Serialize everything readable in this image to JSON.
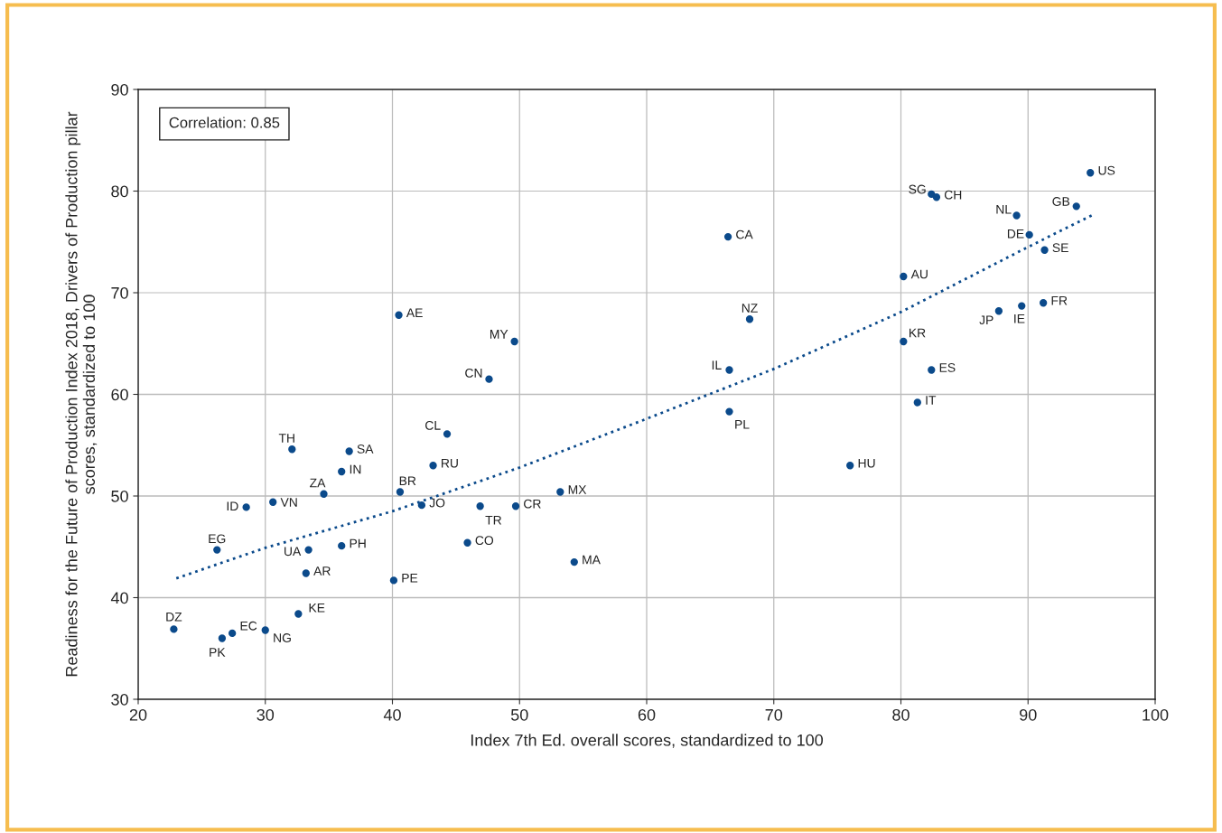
{
  "chart_data": {
    "type": "scatter",
    "xlabel": "Index 7th Ed. overall scores, standardized to 100",
    "ylabel": "Readiness for the Future of Production Index 2018, Drivers of Production pillar scores, standardized to 100",
    "annotations": [
      "Correlation: 0.85"
    ],
    "xlim": [
      20,
      100
    ],
    "xticks": [
      20,
      30,
      40,
      50,
      60,
      70,
      80,
      90,
      100
    ],
    "ylim": [
      30,
      90
    ],
    "yticks": [
      30,
      40,
      50,
      60,
      70,
      80,
      90
    ],
    "grid": true,
    "series": [
      {
        "color": "#0b4a8b",
        "marker": "circle",
        "x": [
          94.9,
          93.8,
          82.4,
          82.8,
          89.1,
          90.1,
          91.3,
          66.4,
          80.2,
          91.2,
          89.5,
          87.7,
          68.1,
          40.5,
          49.6,
          80.2,
          66.5,
          82.4,
          47.6,
          81.3,
          66.5,
          44.3,
          32.1,
          36.6,
          76.0,
          43.2,
          36.0,
          34.6,
          40.6,
          53.2,
          30.6,
          28.5,
          42.3,
          46.9,
          49.7,
          26.2,
          33.4,
          36.0,
          45.9,
          54.3,
          33.2,
          40.1,
          32.6,
          22.8,
          27.4,
          26.6,
          30.0
        ],
        "values": [
          81.8,
          78.5,
          79.7,
          79.4,
          77.6,
          75.7,
          74.2,
          75.5,
          71.6,
          69.0,
          68.7,
          68.2,
          67.4,
          67.8,
          65.2,
          65.2,
          62.4,
          62.4,
          61.5,
          59.2,
          58.3,
          56.1,
          54.6,
          54.4,
          53.0,
          53.0,
          52.4,
          50.2,
          50.4,
          50.4,
          49.4,
          48.9,
          49.1,
          49.0,
          49.0,
          44.7,
          44.7,
          45.1,
          45.4,
          43.5,
          42.4,
          41.7,
          38.4,
          36.9,
          36.5,
          36.0,
          36.8
        ],
        "value_labels": [
          "US",
          "GB",
          "SG",
          "CH",
          "NL",
          "DE",
          "SE",
          "CA",
          "AU",
          "FR",
          "IE",
          "JP",
          "NZ",
          "AE",
          "MY",
          "KR",
          "IL",
          "ES",
          "CN",
          "IT",
          "PL",
          "CL",
          "TH",
          "SA",
          "HU",
          "RU",
          "IN",
          "ZA",
          "BR",
          "MX",
          "VN",
          "ID",
          "JO",
          "TR",
          "CR",
          "EG",
          "UA",
          "PH",
          "CO",
          "MA",
          "AR",
          "PE",
          "KE",
          "DZ",
          "EC",
          "PK",
          "NG"
        ]
      },
      {
        "type": "line",
        "color": "#0b4a8b",
        "line_style": "dotted",
        "x": [
          23,
          30,
          40,
          50,
          60,
          70,
          80,
          90,
          95
        ],
        "values": [
          41.9,
          44.9,
          48.5,
          52.8,
          57.6,
          62.5,
          68.1,
          74.5,
          77.6
        ]
      }
    ]
  }
}
